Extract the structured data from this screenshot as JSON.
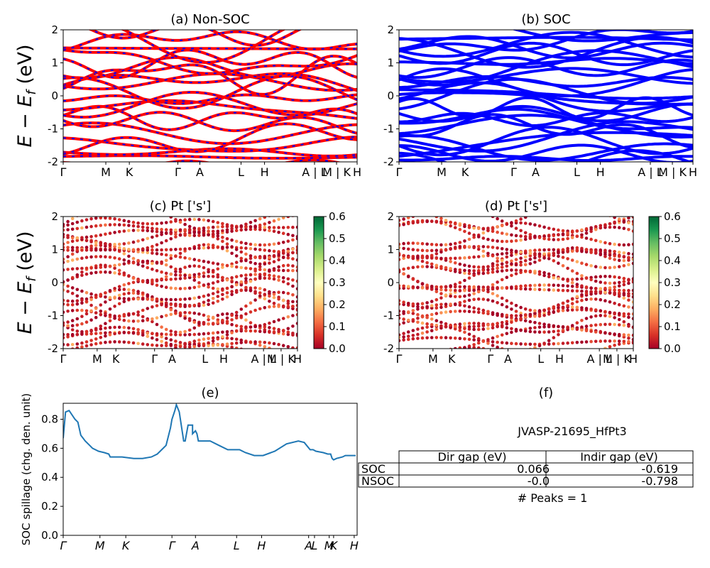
{
  "chart_data": [
    {
      "id": "a",
      "type": "line",
      "title": "(a) Non-SOC",
      "ylabel": "E − E_f (eV)",
      "ylim": [
        -2,
        2
      ],
      "yticks": [
        "-2",
        "-1",
        "0",
        "1",
        "2"
      ],
      "xticks": [
        "Γ",
        "M",
        "K",
        "Γ",
        "A",
        "L",
        "H",
        "A | L",
        "M | K",
        "H"
      ],
      "series": [
        {
          "style": "red solid with blue dashes",
          "color": "#ff0000",
          "dash_color": "#0000ff"
        }
      ]
    },
    {
      "id": "b",
      "type": "line",
      "title": "(b) SOC",
      "ylim": [
        -2,
        2
      ],
      "yticks": [
        "-2",
        "-1",
        "0",
        "1",
        "2"
      ],
      "xticks": [
        "Γ",
        "M",
        "K",
        "Γ",
        "A",
        "L",
        "H",
        "A | L",
        "M | K",
        "H"
      ],
      "series": [
        {
          "style": "solid",
          "color": "#0000ff"
        }
      ]
    },
    {
      "id": "c",
      "type": "scatter",
      "title": "(c)  Pt ['s']",
      "ylabel": "E − E_f (eV)",
      "ylim": [
        -2,
        2
      ],
      "yticks": [
        "-2",
        "-1",
        "0",
        "1",
        "2"
      ],
      "xticks": [
        "Γ",
        "M",
        "K",
        "Γ",
        "A",
        "L",
        "H",
        "A | L",
        "M | K",
        "H"
      ],
      "colorbar": {
        "min": 0.0,
        "max": 0.6,
        "ticks": [
          "0.0",
          "0.1",
          "0.2",
          "0.3",
          "0.4",
          "0.5",
          "0.6"
        ],
        "colormap": "RdYlGn"
      }
    },
    {
      "id": "d",
      "type": "scatter",
      "title": "(d) Pt ['s']",
      "ylim": [
        -2,
        2
      ],
      "yticks": [
        "-2",
        "-1",
        "0",
        "1",
        "2"
      ],
      "xticks": [
        "Γ",
        "M",
        "K",
        "Γ",
        "A",
        "L",
        "H",
        "A | L",
        "M | K",
        "H"
      ],
      "colorbar": {
        "min": 0.0,
        "max": 0.6,
        "ticks": [
          "0.0",
          "0.1",
          "0.2",
          "0.3",
          "0.4",
          "0.5",
          "0.6"
        ],
        "colormap": "RdYlGn"
      }
    },
    {
      "id": "e",
      "type": "line",
      "title": "(e)",
      "ylabel": "SOC spillage (chg. den. unit)",
      "ylim": [
        0.0,
        0.91
      ],
      "yticks": [
        "0.0",
        "0.2",
        "0.4",
        "0.6",
        "0.8"
      ],
      "xticks": [
        "Γ",
        "M",
        "K",
        "Γ",
        "A",
        "L",
        "H",
        "A",
        "L",
        "M",
        "K",
        "H"
      ],
      "x": [
        0.0,
        0.008,
        0.02,
        0.04,
        0.05,
        0.06,
        0.075,
        0.1,
        0.12,
        0.14,
        0.155,
        0.16,
        0.17,
        0.2,
        0.24,
        0.27,
        0.3,
        0.32,
        0.34,
        0.35,
        0.365,
        0.37,
        0.38,
        0.385,
        0.395,
        0.41,
        0.415,
        0.425,
        0.43,
        0.44,
        0.44,
        0.45,
        0.455,
        0.46,
        0.48,
        0.5,
        0.53,
        0.56,
        0.6,
        0.62,
        0.65,
        0.68,
        0.72,
        0.76,
        0.8,
        0.82,
        0.84,
        0.85,
        0.86,
        0.885,
        0.9,
        0.91,
        0.915,
        0.92,
        0.93,
        0.95,
        0.96,
        0.98,
        0.995
      ],
      "y": [
        0.67,
        0.85,
        0.86,
        0.8,
        0.78,
        0.69,
        0.65,
        0.6,
        0.58,
        0.57,
        0.56,
        0.54,
        0.54,
        0.54,
        0.53,
        0.53,
        0.54,
        0.56,
        0.6,
        0.62,
        0.74,
        0.8,
        0.86,
        0.9,
        0.85,
        0.65,
        0.65,
        0.76,
        0.76,
        0.76,
        0.7,
        0.72,
        0.7,
        0.65,
        0.65,
        0.65,
        0.62,
        0.59,
        0.59,
        0.57,
        0.55,
        0.55,
        0.58,
        0.63,
        0.65,
        0.64,
        0.59,
        0.59,
        0.58,
        0.57,
        0.56,
        0.56,
        0.53,
        0.52,
        0.53,
        0.54,
        0.55,
        0.55,
        0.55
      ]
    }
  ],
  "panel_f": {
    "title": "(f)",
    "material": "JVASP-21695_HfPt3",
    "table": {
      "headers": [
        "Dir gap (eV)",
        "Indir gap (eV)"
      ],
      "rows": [
        {
          "label": "SOC",
          "dir": "0.066",
          "indir": "-0.619"
        },
        {
          "label": "NSOC",
          "dir": "-0.0",
          "indir": "-0.798"
        }
      ]
    },
    "peaks": "# Peaks = 1"
  }
}
